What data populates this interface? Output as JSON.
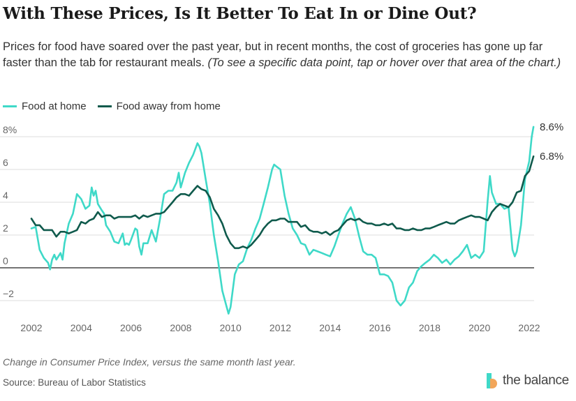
{
  "header": {
    "title": "With These Prices, Is It Better To Eat In or Dine Out?",
    "subtitle": "Prices for food have soared over the past year, but in recent months, the cost of groceries has gone up far faster than the tab for restaurant meals.",
    "subtitle_note": "(To see a specific data point, tap or hover over that area of the chart.)"
  },
  "footer": {
    "note": "Change in Consumer Price Index, versus the same month last year.",
    "source": "Source: Bureau of Labor Statistics",
    "brand": "the balance"
  },
  "colors": {
    "food_at_home": "#3fd9c8",
    "food_away": "#0f5a4c",
    "grid": "#dddddd",
    "zero_line": "#222222"
  },
  "chart_data": {
    "type": "line",
    "title": "With These Prices, Is It Better To Eat In or Dine Out?",
    "xlabel": "",
    "ylabel": "",
    "xlim": [
      2002.0,
      2022.3
    ],
    "ylim": [
      -3,
      9
    ],
    "x_ticks": [
      "2002",
      "2004",
      "2006",
      "2008",
      "2010",
      "2012",
      "2014",
      "2016",
      "2018",
      "2020",
      "2022"
    ],
    "y_ticks": [
      "−2",
      "0",
      "2",
      "4",
      "6",
      "8%"
    ],
    "y_tick_values": [
      -2,
      0,
      2,
      4,
      6,
      8
    ],
    "grid": true,
    "legend_position": "top-left",
    "series": [
      {
        "name": "Food at home",
        "color": "#3fd9c8",
        "end_label": "8.6%",
        "points": [
          [
            2002.0,
            2.4
          ],
          [
            2002.17,
            2.5
          ],
          [
            2002.33,
            1.1
          ],
          [
            2002.5,
            0.6
          ],
          [
            2002.67,
            0.3
          ],
          [
            2002.75,
            -0.1
          ],
          [
            2002.83,
            0.5
          ],
          [
            2002.92,
            0.8
          ],
          [
            2003.0,
            0.5
          ],
          [
            2003.17,
            0.9
          ],
          [
            2003.25,
            0.5
          ],
          [
            2003.33,
            1.5
          ],
          [
            2003.5,
            2.7
          ],
          [
            2003.67,
            3.3
          ],
          [
            2003.83,
            4.5
          ],
          [
            2004.0,
            4.2
          ],
          [
            2004.17,
            3.6
          ],
          [
            2004.33,
            3.8
          ],
          [
            2004.42,
            4.9
          ],
          [
            2004.5,
            4.4
          ],
          [
            2004.58,
            4.7
          ],
          [
            2004.67,
            3.9
          ],
          [
            2004.83,
            3.5
          ],
          [
            2004.92,
            3.3
          ],
          [
            2005.0,
            2.6
          ],
          [
            2005.17,
            2.2
          ],
          [
            2005.33,
            1.6
          ],
          [
            2005.5,
            1.5
          ],
          [
            2005.67,
            2.1
          ],
          [
            2005.75,
            1.4
          ],
          [
            2005.83,
            1.5
          ],
          [
            2005.92,
            1.4
          ],
          [
            2006.0,
            1.7
          ],
          [
            2006.17,
            2.4
          ],
          [
            2006.25,
            2.3
          ],
          [
            2006.33,
            1.3
          ],
          [
            2006.42,
            0.8
          ],
          [
            2006.5,
            1.5
          ],
          [
            2006.67,
            1.5
          ],
          [
            2006.83,
            2.3
          ],
          [
            2007.0,
            1.6
          ],
          [
            2007.17,
            3.0
          ],
          [
            2007.33,
            4.5
          ],
          [
            2007.5,
            4.7
          ],
          [
            2007.67,
            4.7
          ],
          [
            2007.83,
            5.2
          ],
          [
            2007.92,
            5.8
          ],
          [
            2008.0,
            4.9
          ],
          [
            2008.17,
            5.8
          ],
          [
            2008.33,
            6.4
          ],
          [
            2008.5,
            6.9
          ],
          [
            2008.67,
            7.6
          ],
          [
            2008.75,
            7.4
          ],
          [
            2008.83,
            7.0
          ],
          [
            2009.0,
            5.4
          ],
          [
            2009.17,
            3.9
          ],
          [
            2009.33,
            2.0
          ],
          [
            2009.5,
            0.4
          ],
          [
            2009.67,
            -1.4
          ],
          [
            2009.83,
            -2.3
          ],
          [
            2009.92,
            -2.8
          ],
          [
            2010.0,
            -2.4
          ],
          [
            2010.17,
            -0.4
          ],
          [
            2010.33,
            0.2
          ],
          [
            2010.5,
            0.4
          ],
          [
            2010.67,
            1.2
          ],
          [
            2010.83,
            1.7
          ],
          [
            2011.0,
            2.4
          ],
          [
            2011.17,
            3.0
          ],
          [
            2011.33,
            3.9
          ],
          [
            2011.5,
            4.9
          ],
          [
            2011.67,
            6.0
          ],
          [
            2011.75,
            6.3
          ],
          [
            2011.83,
            6.2
          ],
          [
            2012.0,
            6.0
          ],
          [
            2012.17,
            4.4
          ],
          [
            2012.33,
            3.3
          ],
          [
            2012.5,
            2.4
          ],
          [
            2012.67,
            2.0
          ],
          [
            2012.83,
            1.5
          ],
          [
            2013.0,
            1.4
          ],
          [
            2013.17,
            0.8
          ],
          [
            2013.33,
            1.1
          ],
          [
            2013.5,
            1.0
          ],
          [
            2013.67,
            0.9
          ],
          [
            2013.83,
            0.8
          ],
          [
            2014.0,
            0.7
          ],
          [
            2014.17,
            1.3
          ],
          [
            2014.33,
            2.0
          ],
          [
            2014.5,
            2.7
          ],
          [
            2014.67,
            3.3
          ],
          [
            2014.83,
            3.7
          ],
          [
            2015.0,
            3.0
          ],
          [
            2015.17,
            1.9
          ],
          [
            2015.33,
            1.0
          ],
          [
            2015.5,
            0.8
          ],
          [
            2015.67,
            0.8
          ],
          [
            2015.83,
            0.6
          ],
          [
            2016.0,
            -0.4
          ],
          [
            2016.17,
            -0.4
          ],
          [
            2016.33,
            -0.5
          ],
          [
            2016.5,
            -0.9
          ],
          [
            2016.67,
            -2.0
          ],
          [
            2016.83,
            -2.3
          ],
          [
            2017.0,
            -2.0
          ],
          [
            2017.17,
            -1.2
          ],
          [
            2017.33,
            -0.9
          ],
          [
            2017.5,
            -0.2
          ],
          [
            2017.67,
            0.1
          ],
          [
            2017.83,
            0.3
          ],
          [
            2018.0,
            0.5
          ],
          [
            2018.17,
            0.8
          ],
          [
            2018.33,
            0.6
          ],
          [
            2018.5,
            0.3
          ],
          [
            2018.67,
            0.5
          ],
          [
            2018.83,
            0.2
          ],
          [
            2019.0,
            0.5
          ],
          [
            2019.17,
            0.7
          ],
          [
            2019.33,
            1.0
          ],
          [
            2019.5,
            1.4
          ],
          [
            2019.67,
            0.6
          ],
          [
            2019.83,
            0.8
          ],
          [
            2020.0,
            0.6
          ],
          [
            2020.17,
            1.0
          ],
          [
            2020.33,
            4.1
          ],
          [
            2020.42,
            5.6
          ],
          [
            2020.5,
            4.6
          ],
          [
            2020.67,
            3.9
          ],
          [
            2020.83,
            3.9
          ],
          [
            2021.0,
            3.6
          ],
          [
            2021.17,
            3.7
          ],
          [
            2021.33,
            1.1
          ],
          [
            2021.42,
            0.7
          ],
          [
            2021.5,
            1.0
          ],
          [
            2021.67,
            2.6
          ],
          [
            2021.83,
            5.4
          ],
          [
            2022.0,
            6.5
          ],
          [
            2022.1,
            8.0
          ],
          [
            2022.17,
            8.6
          ]
        ]
      },
      {
        "name": "Food away from home",
        "color": "#0f5a4c",
        "end_label": "6.8%",
        "points": [
          [
            2002.0,
            3.0
          ],
          [
            2002.17,
            2.6
          ],
          [
            2002.33,
            2.6
          ],
          [
            2002.5,
            2.3
          ],
          [
            2002.67,
            2.3
          ],
          [
            2002.83,
            2.3
          ],
          [
            2003.0,
            1.9
          ],
          [
            2003.17,
            2.2
          ],
          [
            2003.33,
            2.2
          ],
          [
            2003.5,
            2.1
          ],
          [
            2003.67,
            2.2
          ],
          [
            2003.83,
            2.3
          ],
          [
            2004.0,
            2.8
          ],
          [
            2004.17,
            2.7
          ],
          [
            2004.33,
            2.9
          ],
          [
            2004.5,
            3.0
          ],
          [
            2004.67,
            3.4
          ],
          [
            2004.83,
            3.1
          ],
          [
            2005.0,
            3.2
          ],
          [
            2005.17,
            3.2
          ],
          [
            2005.33,
            3.0
          ],
          [
            2005.5,
            3.1
          ],
          [
            2005.67,
            3.1
          ],
          [
            2005.83,
            3.1
          ],
          [
            2006.0,
            3.1
          ],
          [
            2006.17,
            3.2
          ],
          [
            2006.33,
            3.0
          ],
          [
            2006.5,
            3.2
          ],
          [
            2006.67,
            3.1
          ],
          [
            2006.83,
            3.2
          ],
          [
            2007.0,
            3.3
          ],
          [
            2007.17,
            3.3
          ],
          [
            2007.33,
            3.4
          ],
          [
            2007.5,
            3.7
          ],
          [
            2007.67,
            4.0
          ],
          [
            2007.83,
            4.3
          ],
          [
            2008.0,
            4.5
          ],
          [
            2008.17,
            4.5
          ],
          [
            2008.33,
            4.4
          ],
          [
            2008.5,
            4.7
          ],
          [
            2008.67,
            5.0
          ],
          [
            2008.83,
            4.8
          ],
          [
            2009.0,
            4.7
          ],
          [
            2009.17,
            4.3
          ],
          [
            2009.33,
            3.6
          ],
          [
            2009.5,
            3.2
          ],
          [
            2009.67,
            2.7
          ],
          [
            2009.83,
            2.0
          ],
          [
            2010.0,
            1.5
          ],
          [
            2010.17,
            1.2
          ],
          [
            2010.33,
            1.2
          ],
          [
            2010.5,
            1.3
          ],
          [
            2010.67,
            1.2
          ],
          [
            2010.83,
            1.4
          ],
          [
            2011.0,
            1.7
          ],
          [
            2011.17,
            2.0
          ],
          [
            2011.33,
            2.4
          ],
          [
            2011.5,
            2.7
          ],
          [
            2011.67,
            2.9
          ],
          [
            2011.83,
            2.9
          ],
          [
            2012.0,
            3.0
          ],
          [
            2012.17,
            3.0
          ],
          [
            2012.33,
            2.8
          ],
          [
            2012.5,
            2.8
          ],
          [
            2012.67,
            2.8
          ],
          [
            2012.83,
            2.5
          ],
          [
            2013.0,
            2.6
          ],
          [
            2013.17,
            2.3
          ],
          [
            2013.33,
            2.2
          ],
          [
            2013.5,
            2.2
          ],
          [
            2013.67,
            2.1
          ],
          [
            2013.83,
            2.2
          ],
          [
            2014.0,
            2.0
          ],
          [
            2014.17,
            2.2
          ],
          [
            2014.33,
            2.3
          ],
          [
            2014.5,
            2.6
          ],
          [
            2014.67,
            2.9
          ],
          [
            2014.83,
            3.0
          ],
          [
            2015.0,
            2.9
          ],
          [
            2015.17,
            3.0
          ],
          [
            2015.33,
            2.8
          ],
          [
            2015.5,
            2.7
          ],
          [
            2015.67,
            2.7
          ],
          [
            2015.83,
            2.6
          ],
          [
            2016.0,
            2.6
          ],
          [
            2016.17,
            2.7
          ],
          [
            2016.33,
            2.6
          ],
          [
            2016.5,
            2.7
          ],
          [
            2016.67,
            2.4
          ],
          [
            2016.83,
            2.4
          ],
          [
            2017.0,
            2.3
          ],
          [
            2017.17,
            2.3
          ],
          [
            2017.33,
            2.4
          ],
          [
            2017.5,
            2.3
          ],
          [
            2017.67,
            2.3
          ],
          [
            2017.83,
            2.4
          ],
          [
            2018.0,
            2.4
          ],
          [
            2018.17,
            2.5
          ],
          [
            2018.33,
            2.6
          ],
          [
            2018.5,
            2.7
          ],
          [
            2018.67,
            2.8
          ],
          [
            2018.83,
            2.7
          ],
          [
            2019.0,
            2.7
          ],
          [
            2019.17,
            2.9
          ],
          [
            2019.33,
            3.0
          ],
          [
            2019.5,
            3.1
          ],
          [
            2019.67,
            3.2
          ],
          [
            2019.83,
            3.1
          ],
          [
            2020.0,
            3.1
          ],
          [
            2020.17,
            3.0
          ],
          [
            2020.33,
            2.9
          ],
          [
            2020.5,
            3.4
          ],
          [
            2020.67,
            3.7
          ],
          [
            2020.83,
            3.9
          ],
          [
            2021.0,
            3.8
          ],
          [
            2021.17,
            3.7
          ],
          [
            2021.33,
            4.0
          ],
          [
            2021.5,
            4.6
          ],
          [
            2021.67,
            4.7
          ],
          [
            2021.83,
            5.6
          ],
          [
            2022.0,
            5.9
          ],
          [
            2022.17,
            6.8
          ]
        ]
      }
    ]
  }
}
